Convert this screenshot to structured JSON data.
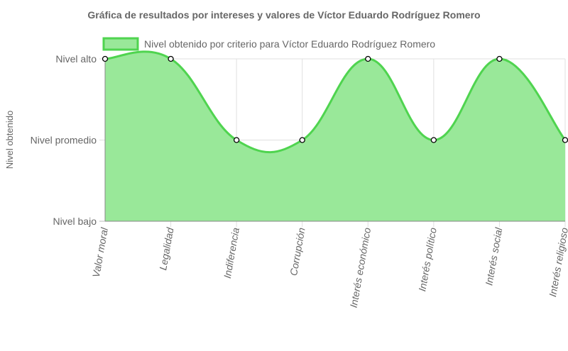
{
  "chart_data": {
    "type": "line",
    "title": "Gráfica de resultados por intereses y valores de Víctor Eduardo Rodríguez Romero",
    "xlabel": "",
    "ylabel": "Nivel obtenido",
    "y_levels": [
      "Nivel bajo",
      "Nivel promedio",
      "Nivel alto"
    ],
    "ylim": [
      0,
      2
    ],
    "categories": [
      "Valor moral",
      "Legalidad",
      "Indiferencia",
      "Corrupción",
      "Interés económico",
      "Interés político",
      "Interés social",
      "Interés religioso"
    ],
    "series": [
      {
        "name": "Nivel obtenido por criterio para Víctor Eduardo Rodríguez Romero",
        "values": [
          2,
          2,
          1,
          1,
          2,
          1,
          2,
          1
        ],
        "fill": true
      }
    ],
    "legend_position": "top",
    "grid": true,
    "colors": {
      "line": "#4fd44f",
      "fill": "#99e899",
      "point_fill": "#ffffff",
      "point_stroke": "#000000",
      "grid": "#e0e0e0",
      "text": "#666666"
    }
  }
}
